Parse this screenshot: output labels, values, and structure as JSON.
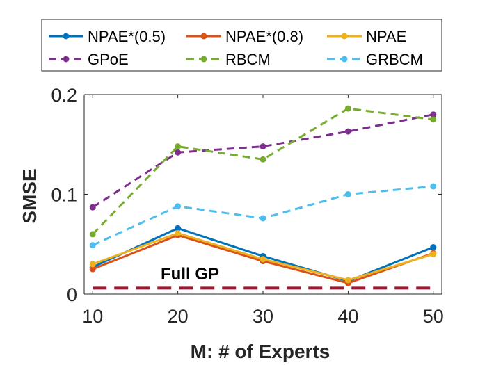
{
  "chart_data": {
    "type": "line",
    "title": "",
    "xlabel": "M: # of Experts",
    "ylabel": "SMSE",
    "x": [
      10,
      20,
      30,
      40,
      50
    ],
    "x_ticks": [
      "10",
      "20",
      "30",
      "40",
      "50"
    ],
    "y_ticks": [
      "0",
      "0.1",
      "0.2"
    ],
    "y_tick_values": [
      0,
      0.1,
      0.2
    ],
    "xlim": [
      9,
      51
    ],
    "ylim": [
      0,
      0.2
    ],
    "grid": false,
    "legend_position": "top",
    "series": [
      {
        "name": "NPAE*(0.5)",
        "values": [
          0.027,
          0.066,
          0.038,
          0.013,
          0.047
        ],
        "color": "#0072bd",
        "dash": "solid"
      },
      {
        "name": "NPAE*(0.8)",
        "values": [
          0.025,
          0.059,
          0.033,
          0.011,
          0.041
        ],
        "color": "#d95319",
        "dash": "solid"
      },
      {
        "name": "NPAE",
        "values": [
          0.03,
          0.061,
          0.035,
          0.014,
          0.04
        ],
        "color": "#edb120",
        "dash": "solid"
      },
      {
        "name": "GPoE",
        "values": [
          0.087,
          0.142,
          0.148,
          0.163,
          0.18
        ],
        "color": "#7e2f8e",
        "dash": "dashed"
      },
      {
        "name": "RBCM",
        "values": [
          0.06,
          0.148,
          0.135,
          0.186,
          0.175
        ],
        "color": "#77ac30",
        "dash": "dashed"
      },
      {
        "name": "GRBCM",
        "values": [
          0.049,
          0.088,
          0.076,
          0.1,
          0.108
        ],
        "color": "#4dbeee",
        "dash": "dashed"
      }
    ],
    "reference_line": {
      "name": "Full GP",
      "value": 0.006,
      "color": "#a2142f",
      "dash": "dashed"
    },
    "annotations": [
      {
        "text": "Full GP"
      }
    ]
  }
}
